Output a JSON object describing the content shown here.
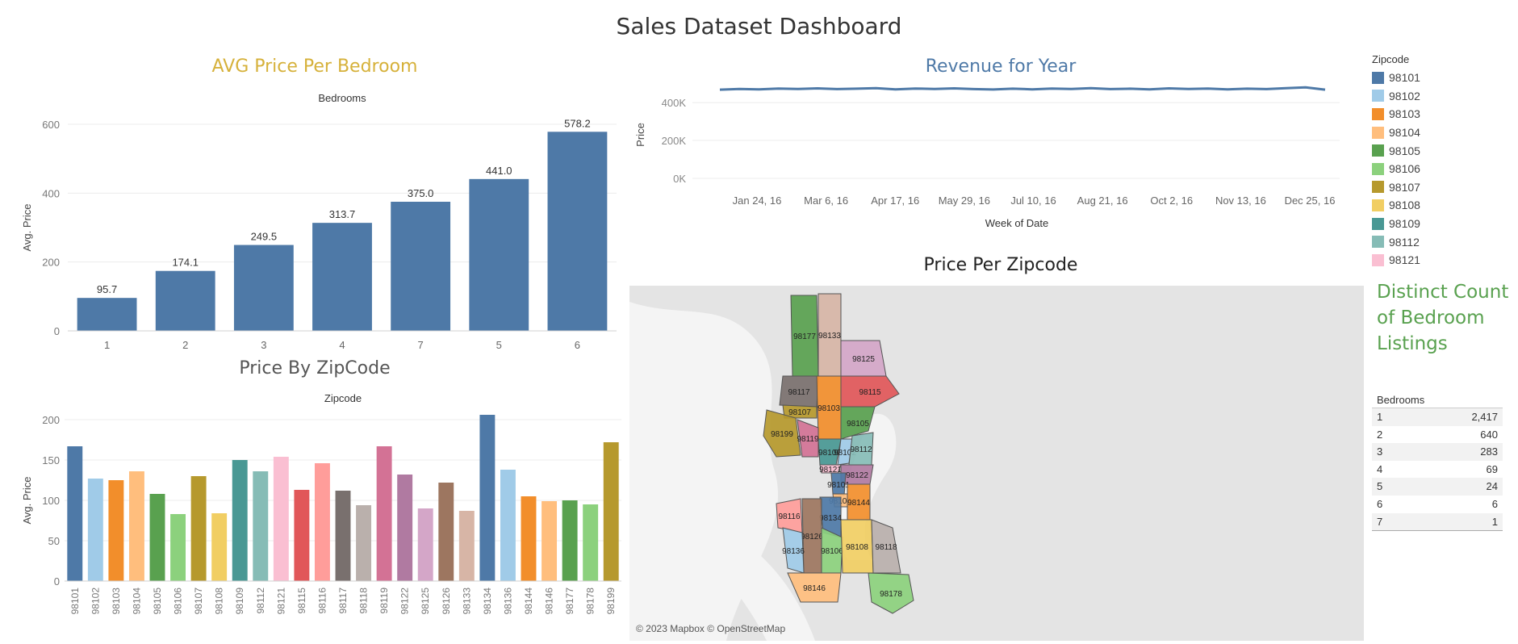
{
  "dashboard": {
    "title": "Sales Dataset Dashboard"
  },
  "colors": {
    "blue": "#4e79a7"
  },
  "palette": [
    "#4e79a7",
    "#a0cbe8",
    "#f28e2b",
    "#ffbe7d",
    "#59a14f",
    "#8cd17d",
    "#b6992d",
    "#f1ce63",
    "#499894",
    "#86bcb6",
    "#fabfd2",
    "#e15759",
    "#ff9d9a",
    "#79706e",
    "#bab0ac",
    "#d37295",
    "#b07aa1",
    "#d4a6c8",
    "#9d7660",
    "#d7b5a6"
  ],
  "chart_data": [
    {
      "id": "avg_price_per_bedroom",
      "type": "bar",
      "title": "AVG Price Per Bedroom",
      "title_color": "#d6b13a",
      "xlabel": "Bedrooms",
      "ylabel": "Avg. Price",
      "categories": [
        "1",
        "2",
        "3",
        "4",
        "7",
        "5",
        "6"
      ],
      "values": [
        95.7,
        174.1,
        249.5,
        313.7,
        375.0,
        441.0,
        578.2
      ],
      "data_labels": [
        "95.7",
        "174.1",
        "249.5",
        "313.7",
        "375.0",
        "441.0",
        "578.2"
      ],
      "ylim": [
        0,
        600
      ],
      "yticks": [
        0,
        200,
        400,
        600
      ],
      "color": "#4e79a7",
      "grid": true
    },
    {
      "id": "price_by_zipcode",
      "type": "bar",
      "title": "Price By ZipCode",
      "xlabel": "Zipcode",
      "ylabel": "Avg. Price",
      "categories": [
        "98101",
        "98102",
        "98103",
        "98104",
        "98105",
        "98106",
        "98107",
        "98108",
        "98109",
        "98112",
        "98121",
        "98115",
        "98116",
        "98117",
        "98118",
        "98119",
        "98122",
        "98125",
        "98126",
        "98133",
        "98134",
        "98136",
        "98144",
        "98146",
        "98177",
        "98178",
        "98199"
      ],
      "values": [
        167,
        127,
        125,
        136,
        108,
        83,
        130,
        84,
        150,
        136,
        154,
        113,
        146,
        112,
        94,
        167,
        132,
        90,
        122,
        87,
        206,
        138,
        105,
        99,
        100,
        95,
        172
      ],
      "ylim": [
        0,
        200
      ],
      "yticks": [
        0,
        50,
        100,
        150,
        200
      ],
      "grid": true
    },
    {
      "id": "revenue_for_year",
      "type": "line",
      "title": "Revenue for Year",
      "title_color": "#4e79a7",
      "xlabel": "Week of Date",
      "ylabel": "Price",
      "x_ticks": [
        "Jan 24, 16",
        "Mar 6, 16",
        "Apr 17, 16",
        "May 29, 16",
        "Jul 10, 16",
        "Aug 21, 16",
        "Oct 2, 16",
        "Nov 13, 16",
        "Dec 25, 16"
      ],
      "ytick_labels": [
        "0K",
        "200K",
        "400K"
      ],
      "yticks": [
        0,
        200000,
        400000
      ],
      "ylim": [
        0,
        460000
      ],
      "values": [
        468000,
        472000,
        470000,
        474000,
        472000,
        475000,
        471000,
        473000,
        476000,
        470000,
        474000,
        472000,
        475000,
        471000,
        469000,
        473000,
        470000,
        474000,
        472000,
        476000,
        471000,
        473000,
        470000,
        475000,
        472000,
        474000,
        470000,
        473000,
        471000,
        476000,
        480000,
        468000
      ],
      "color": "#4e79a7"
    },
    {
      "id": "distinct_count_bedrooms",
      "type": "table",
      "title": "Distinct Count of Bedroom Listings",
      "column_header": "Bedrooms",
      "rows": [
        {
          "label": "1",
          "value": "2,417"
        },
        {
          "label": "2",
          "value": "640"
        },
        {
          "label": "3",
          "value": "283"
        },
        {
          "label": "4",
          "value": "69"
        },
        {
          "label": "5",
          "value": "24"
        },
        {
          "label": "6",
          "value": "6"
        },
        {
          "label": "7",
          "value": "1"
        }
      ]
    }
  ],
  "legend": {
    "title": "Zipcode",
    "items": [
      {
        "label": "98101",
        "color": "#4e79a7"
      },
      {
        "label": "98102",
        "color": "#a0cbe8"
      },
      {
        "label": "98103",
        "color": "#f28e2b"
      },
      {
        "label": "98104",
        "color": "#ffbe7d"
      },
      {
        "label": "98105",
        "color": "#59a14f"
      },
      {
        "label": "98106",
        "color": "#8cd17d"
      },
      {
        "label": "98107",
        "color": "#b6992d"
      },
      {
        "label": "98108",
        "color": "#f1ce63"
      },
      {
        "label": "98109",
        "color": "#499894"
      },
      {
        "label": "98112",
        "color": "#86bcb6"
      },
      {
        "label": "98121",
        "color": "#fabfd2"
      }
    ]
  },
  "map": {
    "title": "Price Per Zipcode",
    "credit": "© 2023 Mapbox © OpenStreetMap",
    "regions": [
      {
        "label": "98177",
        "color": "#59a14f"
      },
      {
        "label": "98133",
        "color": "#d7b5a6"
      },
      {
        "label": "98125",
        "color": "#d4a6c8"
      },
      {
        "label": "98117",
        "color": "#79706e"
      },
      {
        "label": "98115",
        "color": "#e15759"
      },
      {
        "label": "98107",
        "color": "#b6992d"
      },
      {
        "label": "98103",
        "color": "#f28e2b"
      },
      {
        "label": "98105",
        "color": "#59a14f"
      },
      {
        "label": "98199",
        "color": "#b6992d"
      },
      {
        "label": "98119",
        "color": "#d37295"
      },
      {
        "label": "98109",
        "color": "#499894"
      },
      {
        "label": "98102",
        "color": "#a0cbe8"
      },
      {
        "label": "98112",
        "color": "#86bcb6"
      },
      {
        "label": "98121",
        "color": "#fabfd2"
      },
      {
        "label": "98122",
        "color": "#b07aa1"
      },
      {
        "label": "98101",
        "color": "#4e79a7"
      },
      {
        "label": "98104",
        "color": "#ffbe7d"
      },
      {
        "label": "98144",
        "color": "#f28e2b"
      },
      {
        "label": "98116",
        "color": "#ff9d9a"
      },
      {
        "label": "98134",
        "color": "#4e79a7"
      },
      {
        "label": "98126",
        "color": "#9d7660"
      },
      {
        "label": "98136",
        "color": "#a0cbe8"
      },
      {
        "label": "98106",
        "color": "#8cd17d"
      },
      {
        "label": "98108",
        "color": "#f1ce63"
      },
      {
        "label": "98118",
        "color": "#bab0ac"
      },
      {
        "label": "98146",
        "color": "#ffbe7d"
      },
      {
        "label": "98178",
        "color": "#8cd17d"
      }
    ]
  }
}
